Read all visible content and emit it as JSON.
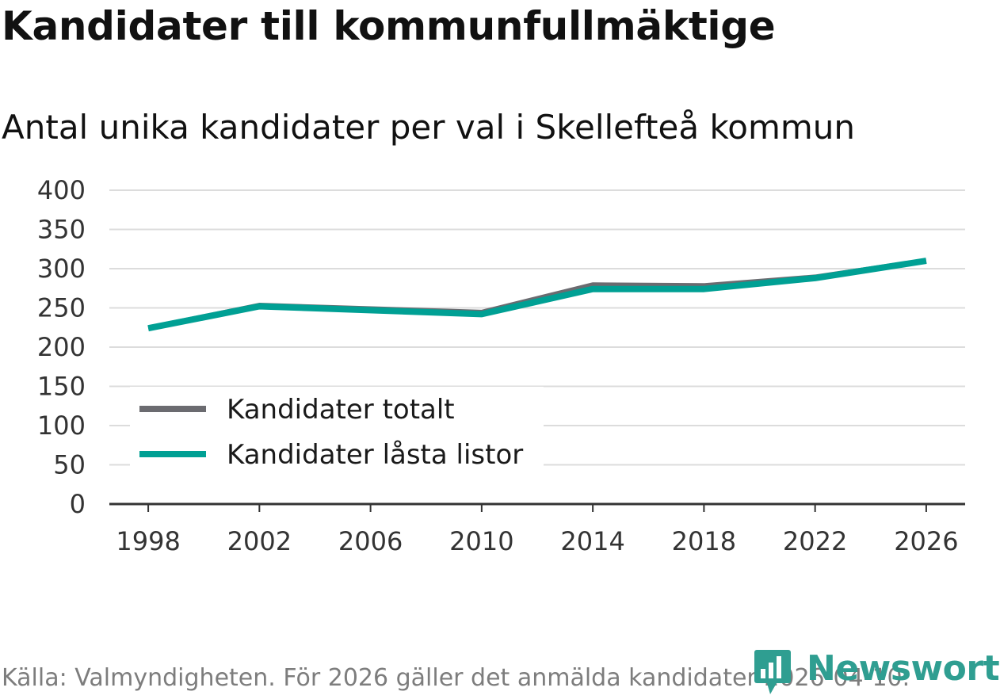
{
  "header": {
    "title": "Kandidater till kommunfullmäktige",
    "subtitle": "Antal unika kandidater per val i Skellefteå kommun"
  },
  "footer": {
    "source": "Källa: Valmyndigheten. För 2026 gäller det anmälda kandidater 2026-04-10.",
    "brand": "Newsworthy"
  },
  "colors": {
    "totalt": "#6b6b70",
    "lasta": "#00a094",
    "grid": "#dcdcdc",
    "axis": "#333333",
    "brand": "#2f9e91"
  },
  "chart_data": {
    "type": "line",
    "title": "Kandidater till kommunfullmäktige",
    "subtitle": "Antal unika kandidater per val i Skellefteå kommun",
    "x": [
      1998,
      2002,
      2010,
      2014,
      2018,
      2022,
      2026
    ],
    "x_ticks": [
      1998,
      2002,
      2006,
      2010,
      2014,
      2018,
      2022,
      2026
    ],
    "y_ticks": [
      0,
      50,
      100,
      150,
      200,
      250,
      300,
      350,
      400
    ],
    "ylim": [
      0,
      400
    ],
    "xlim": [
      1996.6,
      2027.4
    ],
    "grid": true,
    "legend_position": "bottom-left",
    "series": [
      {
        "name": "Kandidater totalt",
        "color_key": "totalt",
        "values": [
          224,
          253,
          244,
          279,
          278,
          289,
          310
        ]
      },
      {
        "name": "Kandidater låsta listor",
        "color_key": "lasta",
        "values": [
          224,
          252,
          242,
          274,
          274,
          288,
          310
        ]
      }
    ]
  }
}
